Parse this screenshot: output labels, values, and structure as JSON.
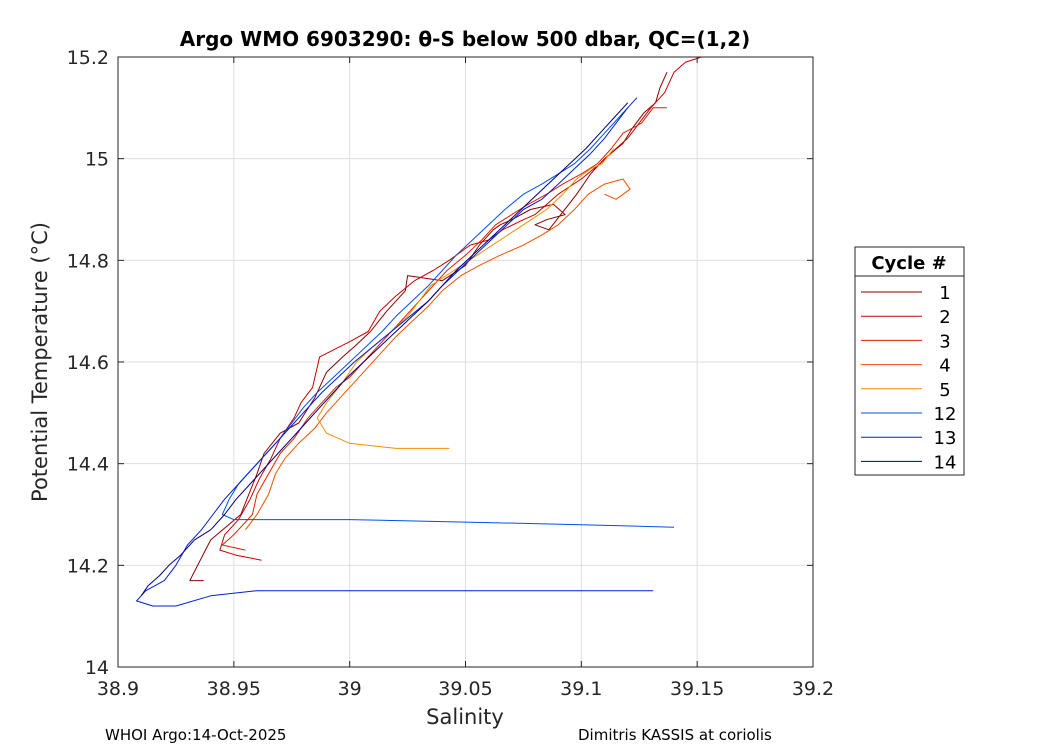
{
  "chart_data": {
    "type": "line",
    "title": "Argo WMO 6903290: θ-S below 500 dbar,  QC=(1,2)",
    "xlabel": "Salinity",
    "ylabel": "Potential Temperature (°C)",
    "xlim": [
      38.9,
      39.2
    ],
    "ylim": [
      14.0,
      15.2
    ],
    "xticks": [
      38.9,
      38.95,
      39.0,
      39.05,
      39.1,
      39.15,
      39.2
    ],
    "xtick_labels": [
      "38.9",
      "38.95",
      "39",
      "39.05",
      "39.1",
      "39.15",
      "39.2"
    ],
    "yticks": [
      14.0,
      14.2,
      14.4,
      14.6,
      14.8,
      15.0,
      15.2
    ],
    "ytick_labels": [
      "14",
      "14.2",
      "14.4",
      "14.6",
      "14.8",
      "15",
      "15.2"
    ],
    "grid": true,
    "legend": {
      "title": "Cycle #",
      "position": "right"
    },
    "series": [
      {
        "name": "1",
        "color": "#8b0000",
        "points": [
          [
            38.937,
            14.17
          ],
          [
            38.931,
            14.17
          ],
          [
            38.94,
            14.25
          ],
          [
            38.953,
            14.3
          ],
          [
            38.96,
            14.38
          ],
          [
            38.963,
            14.42
          ],
          [
            38.97,
            14.46
          ],
          [
            38.978,
            14.48
          ],
          [
            38.985,
            14.53
          ],
          [
            38.99,
            14.58
          ],
          [
            38.997,
            14.61
          ],
          [
            39.002,
            14.63
          ],
          [
            39.009,
            14.66
          ],
          [
            39.016,
            14.7
          ],
          [
            39.024,
            14.74
          ],
          [
            39.025,
            14.77
          ],
          [
            39.04,
            14.76
          ],
          [
            39.05,
            14.79
          ],
          [
            39.056,
            14.83
          ],
          [
            39.062,
            14.86
          ],
          [
            39.065,
            14.87
          ],
          [
            39.07,
            14.88
          ],
          [
            39.078,
            14.9
          ],
          [
            39.088,
            14.91
          ],
          [
            39.093,
            14.89
          ],
          [
            39.085,
            14.88
          ],
          [
            39.08,
            14.87
          ],
          [
            39.086,
            14.86
          ],
          [
            39.098,
            14.93
          ],
          [
            39.104,
            14.97
          ],
          [
            39.11,
            15.0
          ],
          [
            39.118,
            15.03
          ],
          [
            39.122,
            15.06
          ],
          [
            39.127,
            15.09
          ],
          [
            39.132,
            15.11
          ],
          [
            39.134,
            15.14
          ],
          [
            39.137,
            15.17
          ]
        ]
      },
      {
        "name": "2",
        "color": "#c80000",
        "points": [
          [
            38.962,
            14.21
          ],
          [
            38.951,
            14.22
          ],
          [
            38.944,
            14.23
          ],
          [
            38.946,
            14.26
          ],
          [
            38.952,
            14.29
          ],
          [
            38.957,
            14.33
          ],
          [
            38.961,
            14.37
          ],
          [
            38.966,
            14.41
          ],
          [
            38.97,
            14.45
          ],
          [
            38.976,
            14.49
          ],
          [
            38.979,
            14.52
          ],
          [
            38.984,
            14.55
          ],
          [
            38.987,
            14.61
          ],
          [
            39.0,
            14.64
          ],
          [
            39.008,
            14.66
          ],
          [
            39.013,
            14.7
          ],
          [
            39.02,
            14.73
          ],
          [
            39.028,
            14.76
          ],
          [
            39.036,
            14.78
          ],
          [
            39.043,
            14.8
          ],
          [
            39.052,
            14.83
          ],
          [
            39.06,
            14.84
          ],
          [
            39.066,
            14.86
          ],
          [
            39.075,
            14.88
          ],
          [
            39.08,
            14.89
          ],
          [
            39.09,
            14.93
          ],
          [
            39.1,
            14.96
          ],
          [
            39.108,
            14.99
          ],
          [
            39.115,
            15.02
          ],
          [
            39.12,
            15.04
          ],
          [
            39.125,
            15.07
          ],
          [
            39.13,
            15.1
          ],
          [
            39.136,
            15.13
          ],
          [
            39.14,
            15.17
          ],
          [
            39.145,
            15.19
          ],
          [
            39.152,
            15.2
          ]
        ]
      },
      {
        "name": "3",
        "color": "#e02000",
        "points": [
          [
            38.955,
            14.23
          ],
          [
            38.945,
            14.24
          ],
          [
            38.95,
            14.26
          ],
          [
            38.958,
            14.3
          ],
          [
            38.96,
            14.34
          ],
          [
            38.965,
            14.38
          ],
          [
            38.97,
            14.42
          ],
          [
            38.976,
            14.45
          ],
          [
            38.982,
            14.49
          ],
          [
            38.988,
            14.52
          ],
          [
            38.994,
            14.55
          ],
          [
            39.0,
            14.57
          ],
          [
            39.006,
            14.6
          ],
          [
            39.012,
            14.63
          ],
          [
            39.018,
            14.66
          ],
          [
            39.024,
            14.69
          ],
          [
            39.03,
            14.72
          ],
          [
            39.036,
            14.75
          ],
          [
            39.042,
            14.78
          ],
          [
            39.05,
            14.81
          ],
          [
            39.057,
            14.84
          ],
          [
            39.063,
            14.87
          ],
          [
            39.07,
            14.89
          ],
          [
            39.077,
            14.91
          ],
          [
            39.085,
            14.93
          ],
          [
            39.092,
            14.95
          ],
          [
            39.1,
            14.97
          ],
          [
            39.107,
            14.99
          ],
          [
            39.113,
            15.02
          ],
          [
            39.118,
            15.05
          ],
          [
            39.126,
            15.07
          ],
          [
            39.131,
            15.1
          ],
          [
            39.137,
            15.1
          ]
        ]
      },
      {
        "name": "4",
        "color": "#f05000",
        "points": [
          [
            38.955,
            14.27
          ],
          [
            38.96,
            14.3
          ],
          [
            38.965,
            14.34
          ],
          [
            38.968,
            14.38
          ],
          [
            38.972,
            14.41
          ],
          [
            38.978,
            14.44
          ],
          [
            38.985,
            14.47
          ],
          [
            38.99,
            14.5
          ],
          [
            38.996,
            14.53
          ],
          [
            39.002,
            14.56
          ],
          [
            39.008,
            14.59
          ],
          [
            39.014,
            14.62
          ],
          [
            39.02,
            14.65
          ],
          [
            39.027,
            14.68
          ],
          [
            39.034,
            14.71
          ],
          [
            39.04,
            14.74
          ],
          [
            39.048,
            14.77
          ],
          [
            39.056,
            14.79
          ],
          [
            39.065,
            14.81
          ],
          [
            39.075,
            14.83
          ],
          [
            39.083,
            14.85
          ],
          [
            39.09,
            14.87
          ],
          [
            39.097,
            14.9
          ],
          [
            39.103,
            14.93
          ],
          [
            39.11,
            14.95
          ],
          [
            39.118,
            14.96
          ],
          [
            39.121,
            14.94
          ],
          [
            39.115,
            14.92
          ],
          [
            39.11,
            14.93
          ]
        ]
      },
      {
        "name": "5",
        "color": "#f09000",
        "points": [
          [
            39.043,
            14.43
          ],
          [
            39.02,
            14.43
          ],
          [
            39.0,
            14.44
          ],
          [
            38.99,
            14.46
          ],
          [
            38.986,
            14.49
          ],
          [
            38.99,
            14.52
          ],
          [
            38.997,
            14.56
          ],
          [
            39.003,
            14.6
          ],
          [
            39.01,
            14.63
          ],
          [
            39.018,
            14.66
          ],
          [
            39.025,
            14.69
          ],
          [
            39.03,
            14.72
          ],
          [
            39.035,
            14.75
          ],
          [
            39.045,
            14.78
          ],
          [
            39.055,
            14.81
          ],
          [
            39.065,
            14.84
          ],
          [
            39.075,
            14.87
          ],
          [
            39.085,
            14.9
          ],
          [
            39.092,
            14.93
          ],
          [
            39.098,
            14.96
          ],
          [
            39.104,
            14.98
          ],
          [
            39.109,
            14.99
          ],
          [
            39.114,
            15.02
          ]
        ]
      },
      {
        "name": "12",
        "color": "#0050f0",
        "points": [
          [
            39.14,
            14.275
          ],
          [
            39.1,
            14.28
          ],
          [
            39.05,
            14.285
          ],
          [
            39.0,
            14.29
          ],
          [
            38.95,
            14.29
          ],
          [
            38.945,
            14.3
          ],
          [
            38.948,
            14.33
          ],
          [
            38.952,
            14.36
          ],
          [
            38.958,
            14.39
          ],
          [
            38.964,
            14.42
          ],
          [
            38.97,
            14.45
          ],
          [
            38.975,
            14.48
          ],
          [
            38.98,
            14.51
          ],
          [
            38.986,
            14.54
          ],
          [
            38.993,
            14.57
          ],
          [
            39.0,
            14.6
          ],
          [
            39.007,
            14.63
          ],
          [
            39.014,
            14.66
          ],
          [
            39.02,
            14.69
          ],
          [
            39.027,
            14.72
          ],
          [
            39.034,
            14.75
          ],
          [
            39.04,
            14.78
          ],
          [
            39.046,
            14.81
          ],
          [
            39.053,
            14.84
          ],
          [
            39.06,
            14.87
          ],
          [
            39.067,
            14.9
          ],
          [
            39.075,
            14.93
          ],
          [
            39.083,
            14.95
          ],
          [
            39.09,
            14.97
          ],
          [
            39.097,
            14.99
          ],
          [
            39.104,
            15.02
          ],
          [
            39.11,
            15.05
          ],
          [
            39.116,
            15.08
          ],
          [
            39.12,
            15.1
          ]
        ]
      },
      {
        "name": "13",
        "color": "#0020d0",
        "points": [
          [
            39.131,
            14.15
          ],
          [
            39.05,
            14.15
          ],
          [
            38.99,
            14.15
          ],
          [
            38.96,
            14.15
          ],
          [
            38.94,
            14.14
          ],
          [
            38.925,
            14.12
          ],
          [
            38.915,
            14.12
          ],
          [
            38.908,
            14.13
          ],
          [
            38.912,
            14.15
          ],
          [
            38.92,
            14.17
          ],
          [
            38.925,
            14.2
          ],
          [
            38.93,
            14.24
          ],
          [
            38.936,
            14.27
          ],
          [
            38.941,
            14.3
          ],
          [
            38.946,
            14.33
          ],
          [
            38.952,
            14.36
          ],
          [
            38.958,
            14.39
          ],
          [
            38.964,
            14.42
          ],
          [
            38.97,
            14.45
          ],
          [
            38.976,
            14.48
          ],
          [
            38.982,
            14.51
          ],
          [
            38.988,
            14.54
          ],
          [
            38.995,
            14.57
          ],
          [
            39.002,
            14.6
          ],
          [
            39.01,
            14.63
          ],
          [
            39.018,
            14.66
          ],
          [
            39.026,
            14.69
          ],
          [
            39.034,
            14.72
          ],
          [
            39.04,
            14.75
          ],
          [
            39.047,
            14.78
          ],
          [
            39.054,
            14.81
          ],
          [
            39.061,
            14.84
          ],
          [
            39.068,
            14.87
          ],
          [
            39.075,
            14.9
          ],
          [
            39.083,
            14.92
          ],
          [
            39.09,
            14.95
          ],
          [
            39.097,
            14.98
          ],
          [
            39.104,
            15.01
          ],
          [
            39.11,
            15.04
          ],
          [
            39.115,
            15.07
          ],
          [
            39.12,
            15.1
          ],
          [
            39.124,
            15.12
          ]
        ]
      },
      {
        "name": "14",
        "color": "#000080",
        "points": [
          [
            38.91,
            14.14
          ],
          [
            38.913,
            14.16
          ],
          [
            38.918,
            14.18
          ],
          [
            38.922,
            14.2
          ],
          [
            38.927,
            14.22
          ],
          [
            38.933,
            14.25
          ],
          [
            38.94,
            14.27
          ],
          [
            38.946,
            14.3
          ],
          [
            38.951,
            14.33
          ],
          [
            38.957,
            14.36
          ],
          [
            38.963,
            14.39
          ],
          [
            38.969,
            14.42
          ],
          [
            38.975,
            14.45
          ],
          [
            38.981,
            14.48
          ],
          [
            38.987,
            14.51
          ],
          [
            38.993,
            14.54
          ],
          [
            38.999,
            14.57
          ],
          [
            39.006,
            14.6
          ],
          [
            39.013,
            14.63
          ],
          [
            39.02,
            14.66
          ],
          [
            39.027,
            14.69
          ],
          [
            39.034,
            14.72
          ],
          [
            39.04,
            14.75
          ],
          [
            39.046,
            14.78
          ],
          [
            39.053,
            14.81
          ],
          [
            39.06,
            14.84
          ],
          [
            39.067,
            14.87
          ],
          [
            39.074,
            14.9
          ],
          [
            39.081,
            14.93
          ],
          [
            39.088,
            14.96
          ],
          [
            39.095,
            14.99
          ],
          [
            39.102,
            15.02
          ],
          [
            39.108,
            15.05
          ],
          [
            39.114,
            15.08
          ],
          [
            39.12,
            15.11
          ]
        ]
      }
    ]
  },
  "footer": {
    "left": "WHOI Argo:14-Oct-2025",
    "right": "Dimitris KASSIS at coriolis"
  }
}
